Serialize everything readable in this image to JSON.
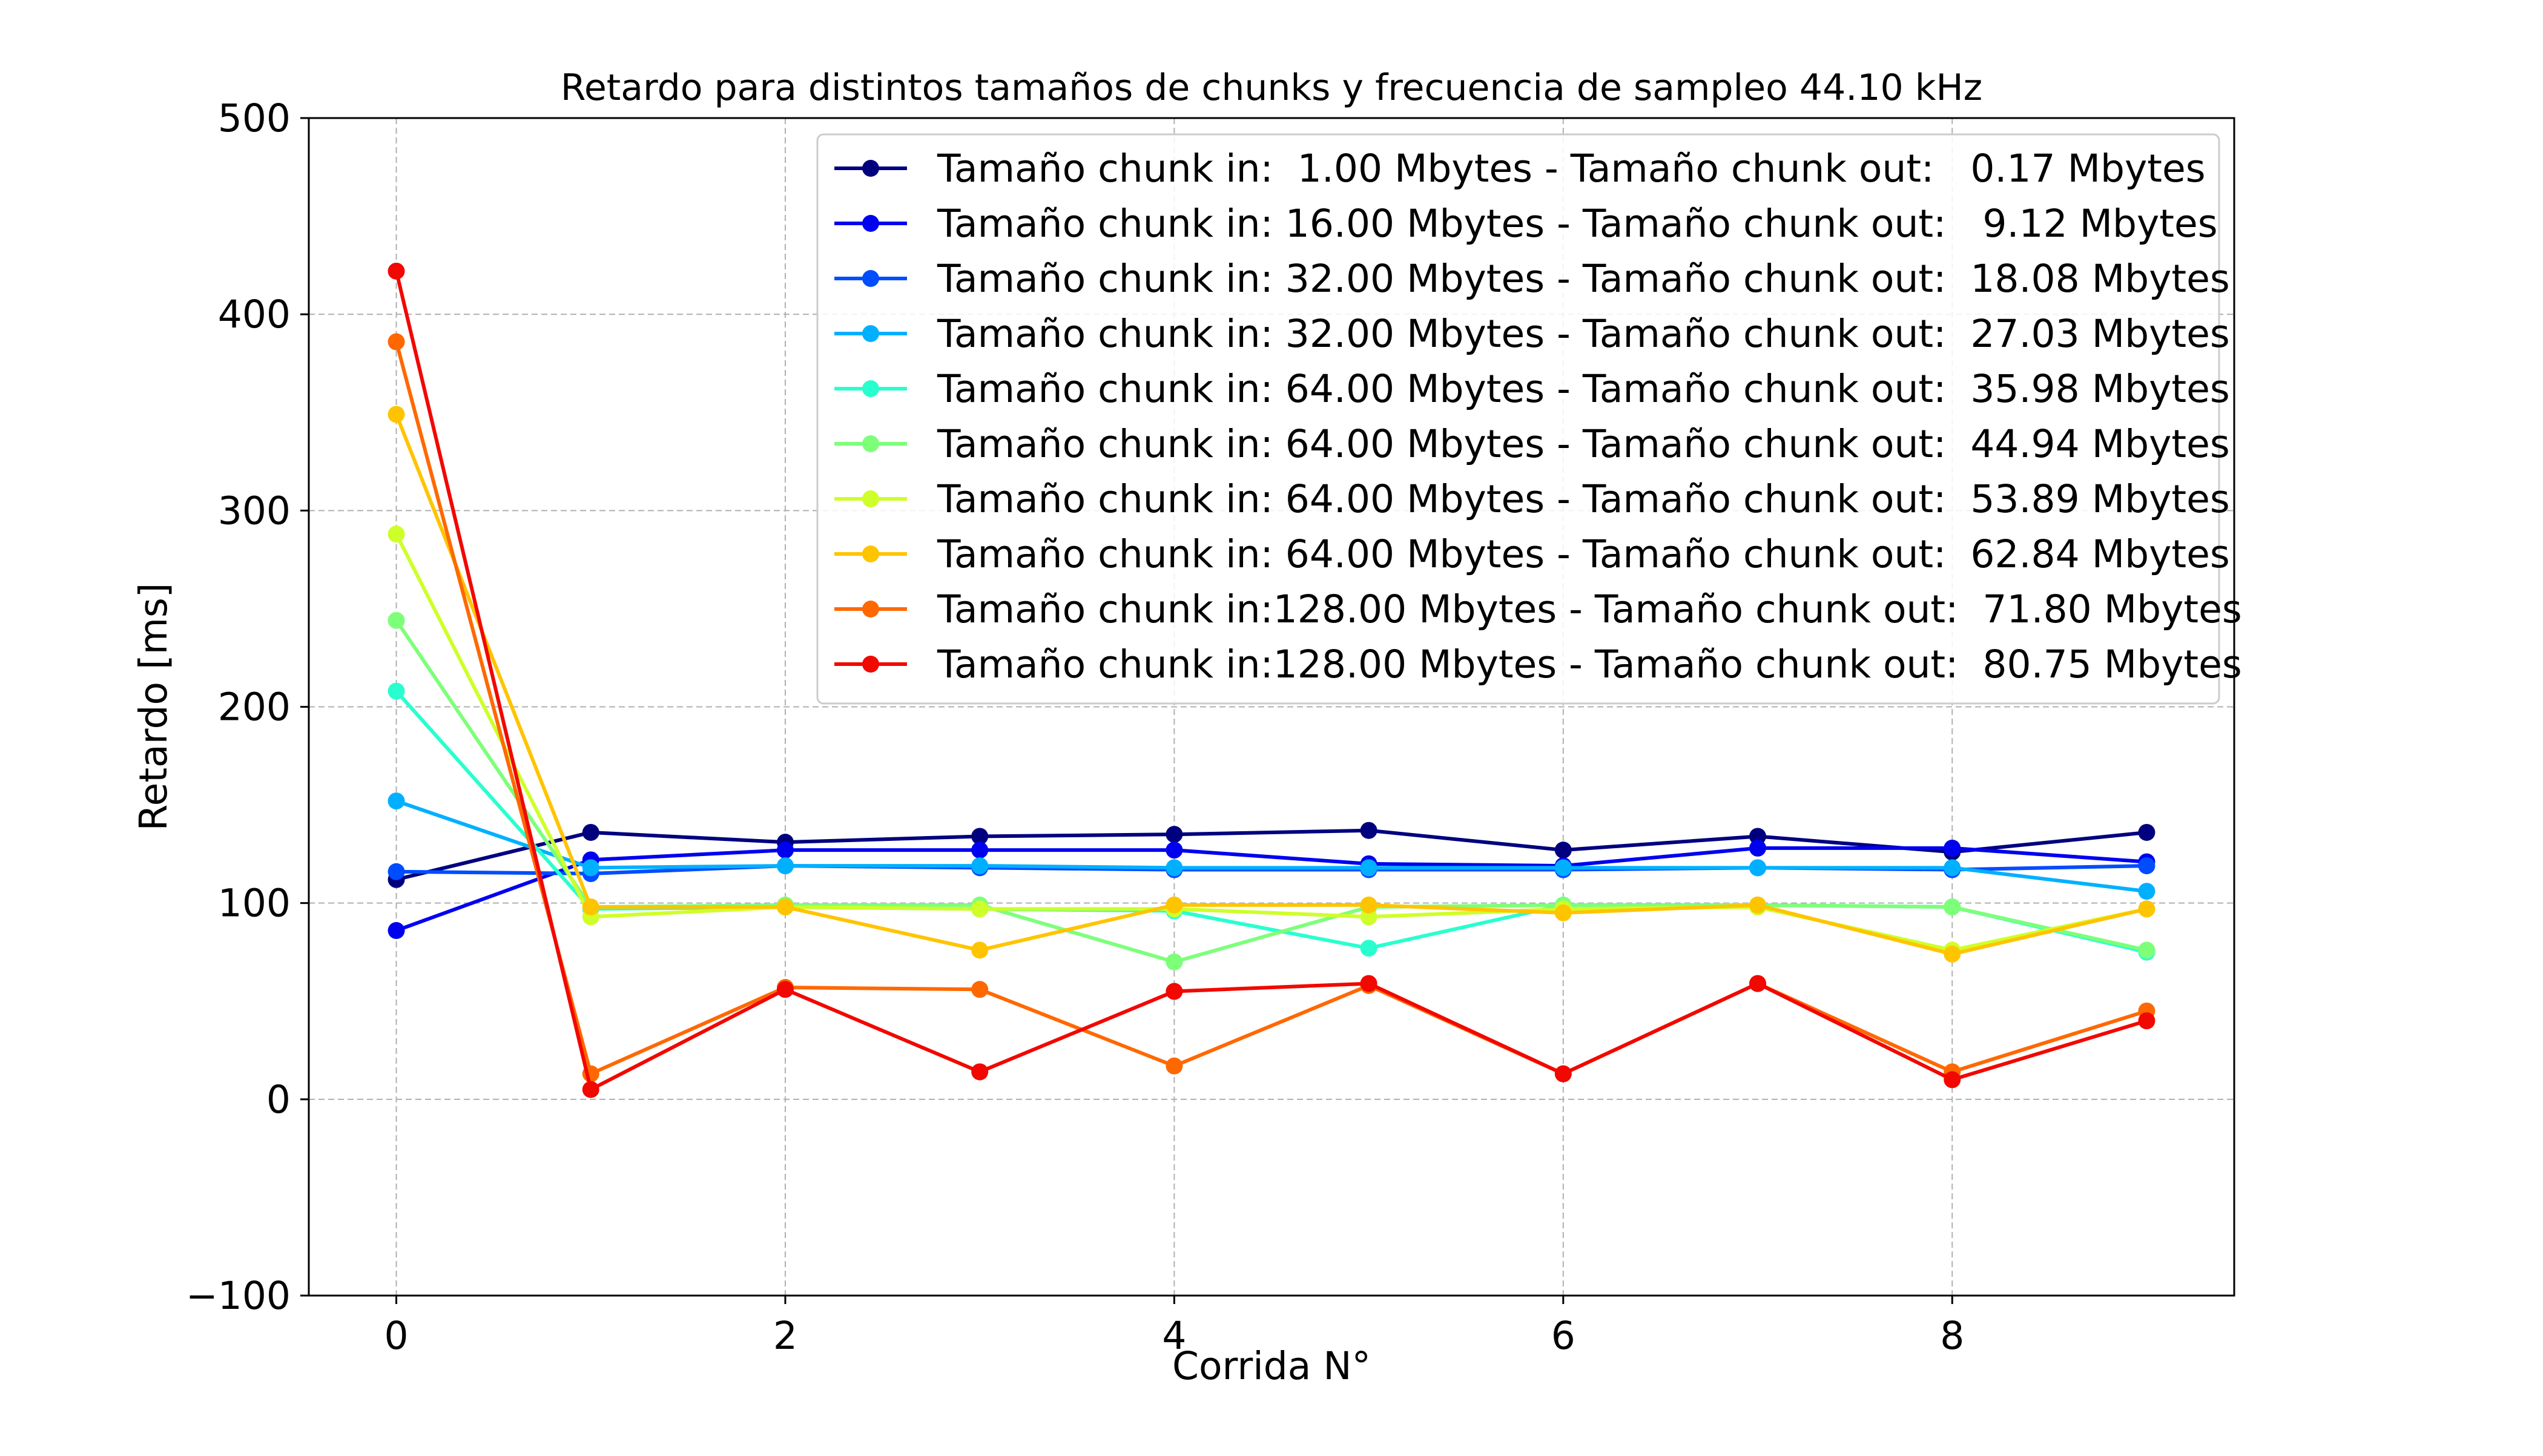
{
  "chart_data": {
    "type": "line",
    "title": "Retardo para distintos tamaños de chunks y frecuencia de sampleo  44.10 kHz",
    "xlabel": "Corrida N°",
    "ylabel": "Retardo [ms]",
    "xlim": [
      -0.45,
      9.45
    ],
    "ylim": [
      -100,
      500
    ],
    "xticks": [
      0,
      2,
      4,
      6,
      8
    ],
    "xtick_labels": [
      "0",
      "2",
      "4",
      "6",
      "8"
    ],
    "yticks": [
      -100,
      0,
      100,
      200,
      300,
      400,
      500
    ],
    "ytick_labels": [
      "−100",
      "0",
      "100",
      "200",
      "300",
      "400",
      "500"
    ],
    "grid": true,
    "legend_position": "upper-right",
    "x": [
      0,
      1,
      2,
      3,
      4,
      5,
      6,
      7,
      8,
      9
    ],
    "series": [
      {
        "name": "Tamaño chunk in:  1.00 Mbytes - Tamaño chunk out:   0.17 Mbytes",
        "color": "#00007f",
        "values": [
          112,
          136,
          131,
          134,
          135,
          137,
          127,
          134,
          126,
          136
        ]
      },
      {
        "name": "Tamaño chunk in: 16.00 Mbytes - Tamaño chunk out:   9.12 Mbytes",
        "color": "#0000f1",
        "values": [
          86,
          122,
          127,
          127,
          127,
          120,
          119,
          128,
          128,
          121
        ]
      },
      {
        "name": "Tamaño chunk in: 32.00 Mbytes - Tamaño chunk out:  18.08 Mbytes",
        "color": "#004cff",
        "values": [
          116,
          115,
          119,
          118,
          117,
          117,
          117,
          118,
          117,
          119
        ]
      },
      {
        "name": "Tamaño chunk in: 32.00 Mbytes - Tamaño chunk out:  27.03 Mbytes",
        "color": "#00b0ff",
        "values": [
          152,
          118,
          119,
          119,
          118,
          118,
          118,
          118,
          118,
          106
        ]
      },
      {
        "name": "Tamaño chunk in: 64.00 Mbytes - Tamaño chunk out:  35.98 Mbytes",
        "color": "#29ffce",
        "values": [
          208,
          97,
          98,
          97,
          96,
          77,
          99,
          99,
          98,
          75
        ]
      },
      {
        "name": "Tamaño chunk in: 64.00 Mbytes - Tamaño chunk out:  44.94 Mbytes",
        "color": "#7dff7a",
        "values": [
          244,
          98,
          99,
          99,
          70,
          98,
          99,
          99,
          98,
          76
        ]
      },
      {
        "name": "Tamaño chunk in: 64.00 Mbytes - Tamaño chunk out:  53.89 Mbytes",
        "color": "#ceff29",
        "values": [
          288,
          93,
          98,
          97,
          97,
          93,
          97,
          98,
          76,
          97
        ]
      },
      {
        "name": "Tamaño chunk in: 64.00 Mbytes - Tamaño chunk out:  62.84 Mbytes",
        "color": "#ffc400",
        "values": [
          349,
          98,
          98,
          76,
          99,
          99,
          95,
          99,
          74,
          97
        ]
      },
      {
        "name": "Tamaño chunk in:128.00 Mbytes - Tamaño chunk out:  71.80 Mbytes",
        "color": "#ff6800",
        "values": [
          386,
          13,
          57,
          56,
          17,
          58,
          13,
          59,
          14,
          45
        ]
      },
      {
        "name": "Tamaño chunk in:128.00 Mbytes - Tamaño chunk out:  80.75 Mbytes",
        "color": "#f10800",
        "values": [
          422,
          5,
          56,
          14,
          55,
          59,
          13,
          59,
          10,
          40
        ]
      }
    ]
  }
}
